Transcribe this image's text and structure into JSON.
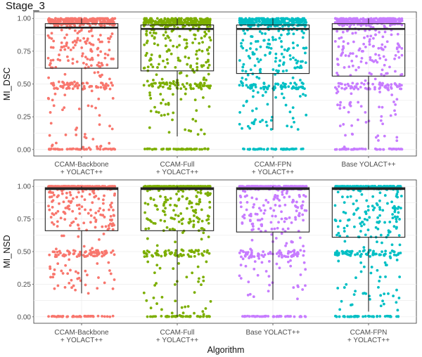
{
  "title": "Stage_3",
  "xlabel": "Algorithm",
  "colors": {
    "red": "#f8766d",
    "green": "#7cae00",
    "cyan": "#00bfc4",
    "purple": "#c77cff"
  },
  "chart_data": [
    {
      "type": "box",
      "ylabel": "MI_DSC",
      "ylim": [
        0,
        1
      ],
      "yticks": [
        "0.00",
        "0.25",
        "0.50",
        "0.75",
        "1.00"
      ],
      "grid": true,
      "categories": [
        {
          "lines": [
            "CCAM-Backbone",
            "+ YOLACT++"
          ],
          "color": "red",
          "q1": 0.62,
          "median": 0.93,
          "q3": 0.96,
          "wmin": 0.0,
          "wmax": 1.0
        },
        {
          "lines": [
            "CCAM-Full",
            "+ YOLACT++"
          ],
          "color": "green",
          "q1": 0.6,
          "median": 0.92,
          "q3": 0.95,
          "wmin": 0.1,
          "wmax": 1.0
        },
        {
          "lines": [
            "CCAM-FPN",
            "+ YOLACT++"
          ],
          "color": "cyan",
          "q1": 0.58,
          "median": 0.92,
          "q3": 0.95,
          "wmin": 0.15,
          "wmax": 1.0
        },
        {
          "lines": [
            "Base YOLACT++"
          ],
          "color": "purple",
          "q1": 0.56,
          "median": 0.92,
          "q3": 0.96,
          "wmin": 0.0,
          "wmax": 1.0
        }
      ]
    },
    {
      "type": "box",
      "ylabel": "MI_NSD",
      "ylim": [
        0,
        1
      ],
      "yticks": [
        "0.00",
        "0.25",
        "0.50",
        "0.75",
        "1.00"
      ],
      "grid": true,
      "categories": [
        {
          "lines": [
            "CCAM-Backbone",
            "+ YOLACT++"
          ],
          "color": "red",
          "q1": 0.66,
          "median": 0.98,
          "q3": 0.99,
          "wmin": 0.18,
          "wmax": 1.0
        },
        {
          "lines": [
            "CCAM-Full",
            "+ YOLACT++"
          ],
          "color": "green",
          "q1": 0.66,
          "median": 0.98,
          "q3": 0.99,
          "wmin": 0.0,
          "wmax": 1.0
        },
        {
          "lines": [
            "Base YOLACT++"
          ],
          "color": "purple",
          "q1": 0.65,
          "median": 0.98,
          "q3": 0.99,
          "wmin": 0.13,
          "wmax": 1.0
        },
        {
          "lines": [
            "CCAM-FPN",
            "+ YOLACT++"
          ],
          "color": "cyan",
          "q1": 0.61,
          "median": 0.98,
          "q3": 0.99,
          "wmin": 0.04,
          "wmax": 1.0
        }
      ]
    }
  ]
}
